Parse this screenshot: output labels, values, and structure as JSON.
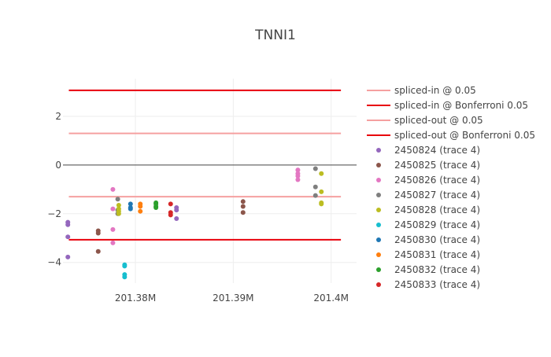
{
  "chart_data": {
    "type": "scatter",
    "title": "TNNI1",
    "xlabel": "",
    "ylabel": "",
    "xlim": [
      201372600,
      201402600
    ],
    "ylim": [
      -4.85,
      3.55
    ],
    "x_ticks": [
      {
        "value": 201380000,
        "label": "201.38M"
      },
      {
        "value": 201390000,
        "label": "201.39M"
      },
      {
        "value": 201400000,
        "label": "201.4M"
      }
    ],
    "y_ticks": [
      {
        "value": 2,
        "label": "2"
      },
      {
        "value": 0,
        "label": "0"
      },
      {
        "value": -2,
        "label": "−2"
      },
      {
        "value": -4,
        "label": "−4"
      }
    ],
    "grid": true,
    "zero_line": true,
    "legend_position": "right",
    "threshold_lines": [
      {
        "name": "spliced-in @ 0.05",
        "y": 1.3,
        "x0": 201373200,
        "x1": 201401000,
        "color": "#f5a0a0",
        "width": 2
      },
      {
        "name": "spliced-in @ Bonferroni 0.05",
        "y": 3.07,
        "x0": 201373200,
        "x1": 201401000,
        "color": "#e8000b",
        "width": 2
      },
      {
        "name": "spliced-out @ 0.05",
        "y": -1.3,
        "x0": 201373200,
        "x1": 201401000,
        "color": "#f5a0a0",
        "width": 2
      },
      {
        "name": "spliced-out @ Bonferroni 0.05",
        "y": -3.07,
        "x0": 201373200,
        "x1": 201401000,
        "color": "#e8000b",
        "width": 2
      }
    ],
    "series": [
      {
        "name": "2450824 (trace 4)",
        "color": "#9467bd",
        "x": [
          201373100,
          201373100,
          201373100,
          201373100,
          201384200,
          201384200,
          201384200
        ],
        "y": [
          -2.35,
          -2.45,
          -2.95,
          -3.78,
          -1.75,
          -1.85,
          -2.2
        ]
      },
      {
        "name": "2450825 (trace 4)",
        "color": "#8c564b",
        "x": [
          201376200,
          201376200,
          201376200,
          201391000,
          201391000,
          201391000
        ],
        "y": [
          -2.7,
          -2.8,
          -3.55,
          -1.5,
          -1.7,
          -1.95
        ]
      },
      {
        "name": "2450826 (trace 4)",
        "color": "#e377c2",
        "x": [
          201377700,
          201377700,
          201377700,
          201377700,
          201396600,
          201396600,
          201396600,
          201396600
        ],
        "y": [
          -1.0,
          -1.8,
          -2.65,
          -3.2,
          -0.2,
          -0.35,
          -0.45,
          -0.6
        ]
      },
      {
        "name": "2450827 (trace 4)",
        "color": "#7f7f7f",
        "x": [
          201378200,
          201378200,
          201378200,
          201398400,
          201398400,
          201398400
        ],
        "y": [
          -1.4,
          -1.85,
          -2.0,
          -0.15,
          -0.9,
          -1.25
        ]
      },
      {
        "name": "2450828 (trace 4)",
        "color": "#bcbd22",
        "x": [
          201378300,
          201378300,
          201378300,
          201378300,
          201399000,
          201399000,
          201399000,
          201399000
        ],
        "y": [
          -1.65,
          -1.8,
          -1.9,
          -2.0,
          -0.35,
          -1.1,
          -1.55,
          -1.6
        ]
      },
      {
        "name": "2450829 (trace 4)",
        "color": "#17becf",
        "x": [
          201378900,
          201378900,
          201378900,
          201378900
        ],
        "y": [
          -4.1,
          -4.15,
          -4.5,
          -4.6
        ]
      },
      {
        "name": "2450830 (trace 4)",
        "color": "#1f77b4",
        "x": [
          201379500,
          201379500,
          201379500
        ],
        "y": [
          -1.6,
          -1.75,
          -1.8
        ]
      },
      {
        "name": "2450831 (trace 4)",
        "color": "#ff7f0e",
        "x": [
          201380500,
          201380500,
          201380500
        ],
        "y": [
          -1.6,
          -1.7,
          -1.9
        ]
      },
      {
        "name": "2450832 (trace 4)",
        "color": "#2ca02c",
        "x": [
          201382100,
          201382100,
          201382100,
          201382100
        ],
        "y": [
          -1.55,
          -1.6,
          -1.7,
          -1.75
        ]
      },
      {
        "name": "2450833 (trace 4)",
        "color": "#d62728",
        "x": [
          201383600,
          201383600,
          201383600
        ],
        "y": [
          -1.6,
          -1.95,
          -2.05
        ]
      }
    ]
  }
}
